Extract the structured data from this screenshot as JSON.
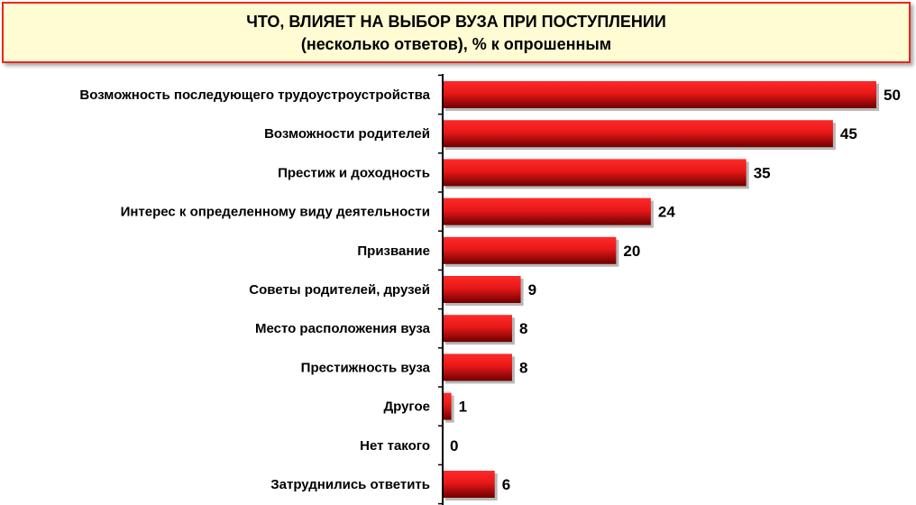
{
  "title": {
    "line1": "ЧТО, ВЛИЯЕТ НА ВЫБОР ВУЗА ПРИ ПОСТУПЛЕНИИ",
    "line2": "(несколько ответов), % к опрошенным"
  },
  "colors": {
    "bar": "#e81818",
    "bar_dark": "#6e0000",
    "title_border": "#e8271f",
    "title_bg": "#fffbd2"
  },
  "chart_data": {
    "type": "bar",
    "orientation": "horizontal",
    "title": "ЧТО, ВЛИЯЕТ НА ВЫБОР ВУЗА ПРИ ПОСТУПЛЕНИИ",
    "subtitle": "(несколько ответов), % к опрошенным",
    "categories": [
      "Возможность последующего трудоустроустройства",
      "Возможности родителей",
      "Престиж и доходность",
      "Интерес к определенному виду деятельности",
      "Призвание",
      "Советы родителей, друзей",
      "Место расположения вуза",
      "Престижность вуза",
      "Другое",
      "Нет такого",
      "Затруднились ответить"
    ],
    "values": [
      50,
      45,
      35,
      24,
      20,
      9,
      8,
      8,
      1,
      0,
      6
    ],
    "xlim": [
      0,
      50
    ],
    "grid": false,
    "legend": "none"
  }
}
